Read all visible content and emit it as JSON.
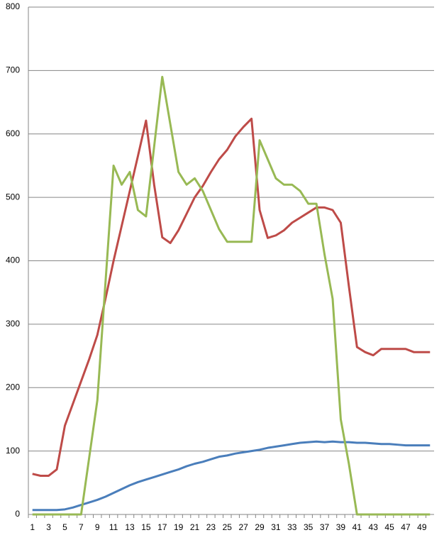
{
  "chart_data": {
    "type": "line",
    "categories": [
      "1",
      null,
      "3",
      null,
      "5",
      null,
      "7",
      null,
      "9",
      null,
      "11",
      null,
      "13",
      null,
      "15",
      null,
      "17",
      null,
      "19",
      null,
      "21",
      null,
      "23",
      null,
      "25",
      null,
      "27",
      null,
      "29",
      null,
      "31",
      null,
      "33",
      null,
      "35",
      null,
      "37",
      null,
      "39",
      null,
      "41",
      null,
      "43",
      null,
      "45",
      null,
      "47",
      null,
      "49",
      null
    ],
    "series": [
      {
        "color": "#4a7ebb",
        "values": [
          7,
          7,
          7,
          7,
          8,
          11,
          15,
          19,
          23,
          28,
          34,
          40,
          46,
          51,
          55,
          59,
          63,
          67,
          71,
          76,
          80,
          83,
          87,
          91,
          93,
          96,
          98,
          100,
          102,
          105,
          107,
          109,
          111,
          113,
          114,
          115,
          114,
          115,
          114,
          114,
          113,
          113,
          112,
          111,
          111,
          110,
          109,
          109,
          109,
          109
        ]
      },
      {
        "color": "#be4b48",
        "values": [
          64,
          61,
          61,
          71,
          140,
          175,
          210,
          245,
          283,
          340,
          400,
          455,
          510,
          565,
          621,
          520,
          437,
          428,
          448,
          474,
          500,
          518,
          540,
          560,
          575,
          596,
          611,
          624,
          480,
          436,
          440,
          448,
          460,
          468,
          476,
          484,
          484,
          480,
          460,
          360,
          264,
          256,
          251,
          261,
          261,
          261,
          261,
          256,
          256,
          256
        ]
      },
      {
        "color": "#98b954",
        "values": [
          0,
          0,
          0,
          0,
          0,
          0,
          0,
          90,
          180,
          365,
          550,
          520,
          540,
          480,
          470,
          580,
          690,
          615,
          540,
          520,
          530,
          510,
          480,
          450,
          430,
          430,
          430,
          430,
          590,
          560,
          530,
          520,
          520,
          510,
          490,
          490,
          410,
          340,
          150,
          80,
          0,
          0,
          0,
          0,
          0,
          0,
          0,
          0,
          0,
          0
        ]
      }
    ],
    "ylim": [
      0,
      800
    ],
    "yticks": [
      0,
      100,
      200,
      300,
      400,
      500,
      600,
      700,
      800
    ],
    "grid": true
  }
}
